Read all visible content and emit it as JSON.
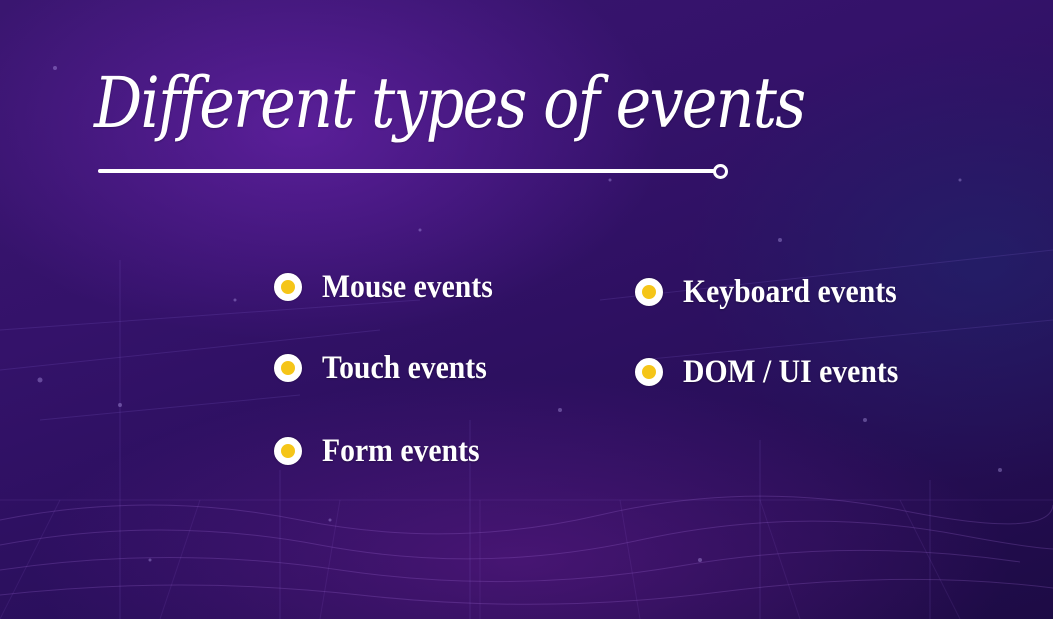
{
  "slide": {
    "title": "Different types of events",
    "left_column": [
      {
        "label": "Mouse events"
      },
      {
        "label": "Touch events"
      },
      {
        "label": "Form events"
      }
    ],
    "right_column": [
      {
        "label": "Keyboard events"
      },
      {
        "label": "DOM / UI events"
      }
    ]
  },
  "colors": {
    "background": "#34126a",
    "title_text": "#ffffff",
    "bullet_fill": "#f5c518",
    "bullet_ring": "#ffffff"
  },
  "icons": {
    "bullet": "yellow-dot-bullet-icon"
  }
}
